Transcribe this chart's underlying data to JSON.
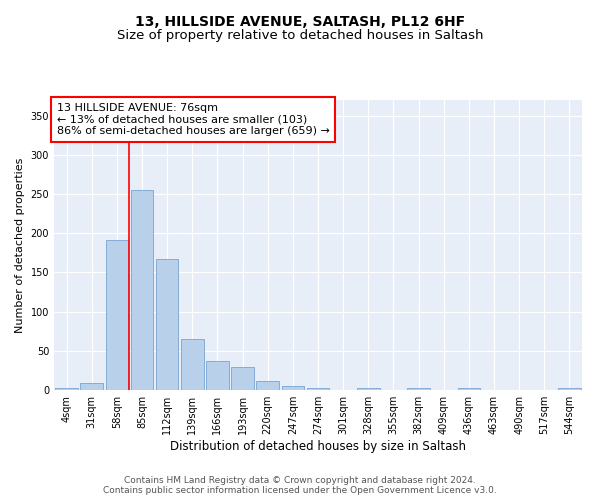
{
  "title1": "13, HILLSIDE AVENUE, SALTASH, PL12 6HF",
  "title2": "Size of property relative to detached houses in Saltash",
  "xlabel": "Distribution of detached houses by size in Saltash",
  "ylabel": "Number of detached properties",
  "categories": [
    "4sqm",
    "31sqm",
    "58sqm",
    "85sqm",
    "112sqm",
    "139sqm",
    "166sqm",
    "193sqm",
    "220sqm",
    "247sqm",
    "274sqm",
    "301sqm",
    "328sqm",
    "355sqm",
    "382sqm",
    "409sqm",
    "436sqm",
    "463sqm",
    "490sqm",
    "517sqm",
    "544sqm"
  ],
  "values": [
    2,
    9,
    192,
    255,
    167,
    65,
    37,
    29,
    11,
    5,
    3,
    0,
    3,
    0,
    2,
    0,
    2,
    0,
    0,
    0,
    2
  ],
  "bar_color": "#b8d0ea",
  "bar_edge_color": "#6699cc",
  "vline_color": "red",
  "vline_x_index": 2,
  "annotation_text": "13 HILLSIDE AVENUE: 76sqm\n← 13% of detached houses are smaller (103)\n86% of semi-detached houses are larger (659) →",
  "annotation_box_color": "white",
  "annotation_box_edgecolor": "red",
  "ylim": [
    0,
    370
  ],
  "yticks": [
    0,
    50,
    100,
    150,
    200,
    250,
    300,
    350
  ],
  "bg_color": "#e8eef8",
  "grid_color": "white",
  "footer_text": "Contains HM Land Registry data © Crown copyright and database right 2024.\nContains public sector information licensed under the Open Government Licence v3.0.",
  "title1_fontsize": 10,
  "title2_fontsize": 9.5,
  "xlabel_fontsize": 8.5,
  "ylabel_fontsize": 8,
  "tick_fontsize": 7,
  "annotation_fontsize": 8,
  "footer_fontsize": 6.5
}
